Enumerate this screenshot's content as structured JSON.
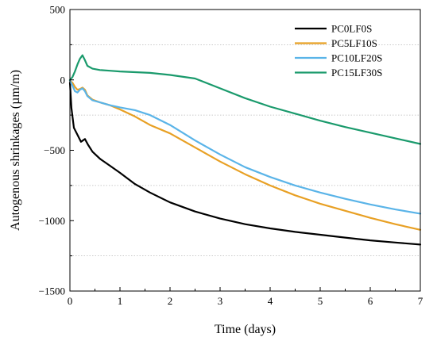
{
  "chart_data": {
    "type": "line",
    "title": "",
    "xlabel": "Time (days)",
    "ylabel": "Autogenous shrinkages (µm/m)",
    "xlim": [
      0,
      7
    ],
    "ylim": [
      -1500,
      500
    ],
    "x_ticks": [
      0,
      1,
      2,
      3,
      4,
      5,
      6,
      7
    ],
    "y_ticks": [
      -1500,
      -1000,
      -500,
      0,
      500
    ],
    "x_tick_labels": [
      "0",
      "1",
      "2",
      "3",
      "4",
      "5",
      "6",
      "7"
    ],
    "y_tick_labels": [
      "−1500",
      "−1000",
      "−500",
      "0",
      "500"
    ],
    "grid": "dotted horizontal",
    "grid_y": [
      -1250,
      -750,
      -250,
      250
    ],
    "legend_position": "top-right",
    "series": [
      {
        "name": "PC0LF0S",
        "color": "#000000",
        "x": [
          0,
          0.03,
          0.08,
          0.15,
          0.22,
          0.3,
          0.36,
          0.45,
          0.6,
          0.8,
          1.0,
          1.3,
          1.6,
          2.0,
          2.5,
          3.0,
          3.5,
          4.0,
          4.5,
          5.0,
          5.5,
          6.0,
          6.5,
          7.0
        ],
        "y": [
          -20,
          -200,
          -340,
          -390,
          -440,
          -420,
          -460,
          -510,
          -560,
          -610,
          -660,
          -740,
          -800,
          -870,
          -935,
          -985,
          -1025,
          -1055,
          -1080,
          -1100,
          -1120,
          -1140,
          -1155,
          -1170
        ]
      },
      {
        "name": "PC5LF10S",
        "color": "#e8a024",
        "x": [
          0,
          0.05,
          0.1,
          0.15,
          0.2,
          0.25,
          0.3,
          0.35,
          0.45,
          0.6,
          0.8,
          1.0,
          1.3,
          1.6,
          2.0,
          2.5,
          3.0,
          3.5,
          4.0,
          4.5,
          5.0,
          5.5,
          6.0,
          6.5,
          7.0
        ],
        "y": [
          -5,
          -20,
          -50,
          -70,
          -65,
          -55,
          -70,
          -110,
          -140,
          -160,
          -180,
          -210,
          -260,
          -320,
          -380,
          -480,
          -580,
          -670,
          -750,
          -820,
          -880,
          -930,
          -980,
          -1025,
          -1065
        ]
      },
      {
        "name": "PC10LF20S",
        "color": "#5ab4e8",
        "x": [
          0,
          0.05,
          0.1,
          0.15,
          0.2,
          0.25,
          0.3,
          0.35,
          0.45,
          0.6,
          0.8,
          1.0,
          1.3,
          1.6,
          2.0,
          2.5,
          3.0,
          3.5,
          4.0,
          4.5,
          5.0,
          5.5,
          6.0,
          6.5,
          7.0
        ],
        "y": [
          -5,
          -40,
          -80,
          -90,
          -70,
          -60,
          -80,
          -115,
          -145,
          -160,
          -180,
          -195,
          -215,
          -250,
          -320,
          -430,
          -530,
          -620,
          -690,
          -750,
          -800,
          -845,
          -885,
          -920,
          -950
        ]
      },
      {
        "name": "PC15LF30S",
        "color": "#1a9a6c",
        "x": [
          0,
          0.05,
          0.1,
          0.15,
          0.2,
          0.25,
          0.3,
          0.35,
          0.45,
          0.6,
          0.8,
          1.0,
          1.3,
          1.6,
          2.0,
          2.5,
          3.0,
          3.5,
          4.0,
          4.5,
          5.0,
          5.5,
          6.0,
          6.5,
          7.0
        ],
        "y": [
          0,
          20,
          60,
          110,
          150,
          175,
          140,
          100,
          80,
          70,
          65,
          60,
          55,
          50,
          35,
          10,
          -60,
          -130,
          -190,
          -240,
          -290,
          -335,
          -375,
          -415,
          -455
        ]
      }
    ]
  }
}
